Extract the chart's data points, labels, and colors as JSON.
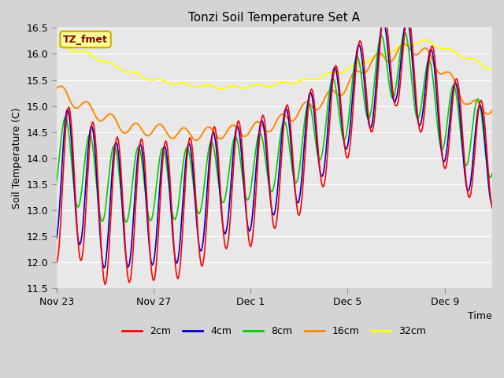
{
  "title": "Tonzi Soil Temperature Set A",
  "xlabel": "Time",
  "ylabel": "Soil Temperature (C)",
  "ylim": [
    11.5,
    16.5
  ],
  "yticks": [
    11.5,
    12.0,
    12.5,
    13.0,
    13.5,
    14.0,
    14.5,
    15.0,
    15.5,
    16.0,
    16.5
  ],
  "fig_bg_color": "#d4d4d4",
  "plot_bg_color": "#e8e8e8",
  "grid_color": "#ffffff",
  "legend_items": [
    "2cm",
    "4cm",
    "8cm",
    "16cm",
    "32cm"
  ],
  "legend_colors": [
    "#ff0000",
    "#0000cc",
    "#00cc00",
    "#ff8800",
    "#ffff00"
  ],
  "annotation_text": "TZ_fmet",
  "annotation_bg": "#ffff99",
  "annotation_border": "#ccaa00",
  "annotation_text_color": "#880000",
  "x_tick_positions": [
    0,
    96,
    192,
    288,
    384
  ],
  "x_tick_labels": [
    "Nov 23",
    "Nov 27",
    "Dec 1",
    "Dec 5",
    "Dec 9"
  ]
}
